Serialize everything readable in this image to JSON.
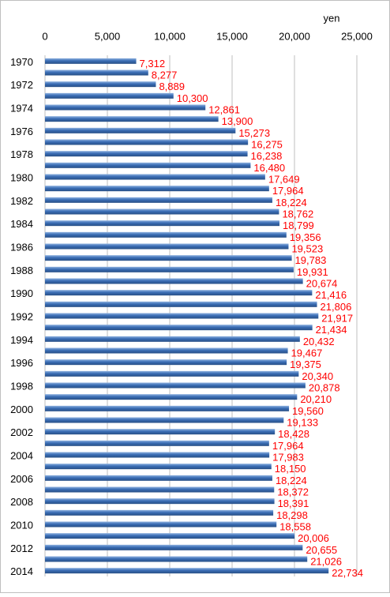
{
  "chart_data": {
    "type": "barh",
    "unit_label": "yen",
    "categories": [
      "1970",
      null,
      "1972",
      null,
      "1974",
      null,
      "1976",
      null,
      "1978",
      null,
      "1980",
      null,
      "1982",
      null,
      "1984",
      null,
      "1986",
      null,
      "1988",
      null,
      "1990",
      null,
      "1992",
      null,
      "1994",
      null,
      "1996",
      null,
      "1998",
      null,
      "2000",
      null,
      "2002",
      null,
      "2004",
      null,
      "2006",
      null,
      "2008",
      null,
      "2010",
      null,
      "2012",
      null,
      "2014"
    ],
    "values": [
      7312,
      8277,
      8889,
      10300,
      12861,
      13900,
      15273,
      16275,
      16238,
      16480,
      17649,
      17964,
      18224,
      18762,
      18799,
      19356,
      19523,
      19783,
      19931,
      20674,
      21416,
      21806,
      21917,
      21434,
      20432,
      19467,
      19375,
      20340,
      20878,
      20210,
      19560,
      19133,
      18428,
      17964,
      17983,
      18150,
      18224,
      18372,
      18391,
      18298,
      18558,
      20006,
      20655,
      21026,
      22734
    ],
    "value_labels": [
      "7,312",
      "8,277",
      "8,889",
      "10,300",
      "12,861",
      "13,900",
      "15,273",
      "16,275",
      "16,238",
      "16,480",
      "17,649",
      "17,964",
      "18,224",
      "18,762",
      "18,799",
      "19,356",
      "19,523",
      "19,783",
      "19,931",
      "20,674",
      "21,416",
      "21,806",
      "21,917",
      "21,434",
      "20,432",
      "19,467",
      "19,375",
      "20,340",
      "20,878",
      "20,210",
      "19,560",
      "19,133",
      "18,428",
      "17,964",
      "17,983",
      "18,150",
      "18,224",
      "18,372",
      "18,391",
      "18,298",
      "18,558",
      "20,006",
      "20,655",
      "21,026",
      "22,734"
    ],
    "color": "#3a6db5",
    "label_color": "#ff0000",
    "xlim": [
      0,
      25000
    ],
    "xticks": [
      0,
      {
        "value": 5000,
        "label": "5,000"
      },
      {
        "value": 10000,
        "label": "10,000"
      },
      {
        "value": 15000,
        "label": "15,000"
      },
      {
        "value": 20000,
        "label": "20,000"
      },
      {
        "value": 25000,
        "label": "25,000"
      }
    ],
    "grid": true
  }
}
